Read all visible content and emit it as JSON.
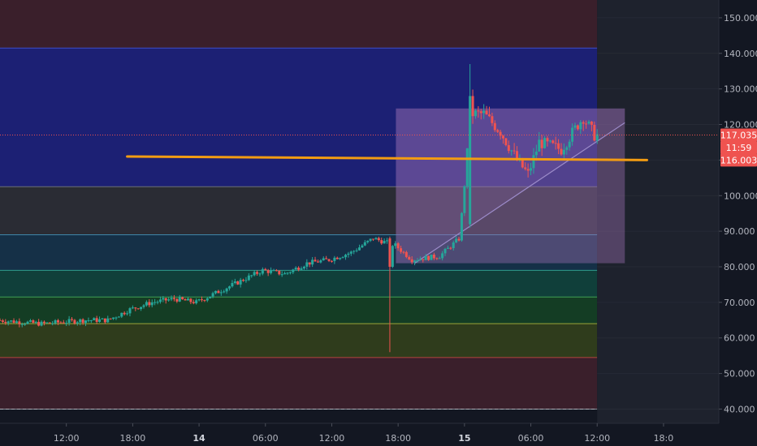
{
  "chart_data": {
    "type": "candlestick",
    "title": "",
    "colors": {
      "background": "#131722",
      "up": "#26a69a",
      "down": "#ef5350",
      "trendline": "#f39c12",
      "triangle": "#9c8bc9",
      "axis_text": "#b2b5be"
    },
    "y_axis": {
      "range": [
        36,
        155
      ],
      "ticks": [
        "150.000",
        "140.000",
        "130.000",
        "120.000",
        "110.000",
        "100.000",
        "90.000",
        "80.000",
        "70.000",
        "60.000",
        "50.000",
        "40.000"
      ],
      "tick_values": [
        150,
        140,
        130,
        120,
        110,
        100,
        90,
        80,
        70,
        60,
        50,
        40
      ]
    },
    "x_axis": {
      "range_hours": [
        0,
        65
      ],
      "ticks": [
        {
          "label": "12:00",
          "t": 6,
          "bold": false
        },
        {
          "label": "18:00",
          "t": 12,
          "bold": false
        },
        {
          "label": "14",
          "t": 18,
          "bold": true
        },
        {
          "label": "06:00",
          "t": 24,
          "bold": false
        },
        {
          "label": "12:00",
          "t": 30,
          "bold": false
        },
        {
          "label": "18:00",
          "t": 36,
          "bold": false
        },
        {
          "label": "15",
          "t": 42,
          "bold": true
        },
        {
          "label": "06:00",
          "t": 48,
          "bold": false
        },
        {
          "label": "12:00",
          "t": 54,
          "bold": false
        },
        {
          "label": "18:0",
          "t": 60,
          "bold": false
        }
      ],
      "projection_start_hour": 54
    },
    "price_bands": [
      {
        "from": 141.5,
        "to": 155,
        "color": "#3a1f2b"
      },
      {
        "from": 102.5,
        "to": 141.5,
        "color": "#1c2074"
      },
      {
        "from": 89,
        "to": 102.5,
        "color": "#2a2c34"
      },
      {
        "from": 79,
        "to": 89,
        "color": "#153047"
      },
      {
        "from": 71.5,
        "to": 79,
        "color": "#103f3a"
      },
      {
        "from": 64,
        "to": 71.5,
        "color": "#143d24"
      },
      {
        "from": 54.5,
        "to": 64,
        "color": "#2f3c1c"
      },
      {
        "from": 40,
        "to": 54.5,
        "color": "#3a1f2b"
      }
    ],
    "band_lines": [
      {
        "value": 141.5,
        "color": "#3f4dc6"
      },
      {
        "value": 102.5,
        "color": "#6b6e78"
      },
      {
        "value": 89,
        "color": "#3f86a8"
      },
      {
        "value": 79,
        "color": "#2e9c8c"
      },
      {
        "value": 71.5,
        "color": "#3fa055"
      },
      {
        "value": 64,
        "color": "#9aa53a"
      },
      {
        "value": 54.5,
        "color": "#b5443f"
      },
      {
        "value": 40,
        "color": "#8a8e98"
      }
    ],
    "candle_anchors": [
      [
        0,
        65
      ],
      [
        4,
        64
      ],
      [
        8,
        65
      ],
      [
        10,
        65
      ],
      [
        12,
        68
      ],
      [
        14,
        70
      ],
      [
        16,
        71
      ],
      [
        18,
        70
      ],
      [
        20,
        73
      ],
      [
        22,
        76
      ],
      [
        24,
        79
      ],
      [
        26,
        78
      ],
      [
        28,
        81
      ],
      [
        30,
        82
      ],
      [
        32,
        84
      ],
      [
        34,
        88
      ],
      [
        36,
        86
      ],
      [
        37.5,
        82
      ],
      [
        40,
        83
      ],
      [
        41.8,
        88
      ],
      [
        42.4,
        108
      ],
      [
        42.8,
        123
      ],
      [
        44,
        123
      ],
      [
        45.5,
        118
      ],
      [
        47,
        110
      ],
      [
        48,
        106
      ],
      [
        49,
        115
      ],
      [
        51,
        113
      ],
      [
        52.5,
        120
      ],
      [
        53,
        122
      ],
      [
        54,
        117
      ]
    ],
    "special_candles": [
      {
        "t": 35.2,
        "open": 88,
        "high": 88.5,
        "low": 56,
        "close": 80
      },
      {
        "t": 42.5,
        "open": 92,
        "high": 137,
        "low": 91,
        "close": 128
      }
    ],
    "last_price_line": 117.035,
    "price_tags": [
      {
        "label": "117.035",
        "value": 117.035,
        "color": "#ef5350"
      },
      {
        "label": "11:59",
        "value": 113.5,
        "color": "#ef5350"
      },
      {
        "label": "116.003",
        "value": 110,
        "color": "#ef5350"
      }
    ],
    "drawings": {
      "horizontal_line": {
        "from": [
          11.5,
          111
        ],
        "to": [
          58.5,
          110
        ]
      },
      "triangle_box": {
        "x0": 35.8,
        "x1": 56.5,
        "y0": 81,
        "y1": 124.5
      },
      "triangle_hypotenuse": {
        "from": [
          37.5,
          81
        ],
        "to": [
          56.5,
          120.5
        ]
      }
    }
  }
}
